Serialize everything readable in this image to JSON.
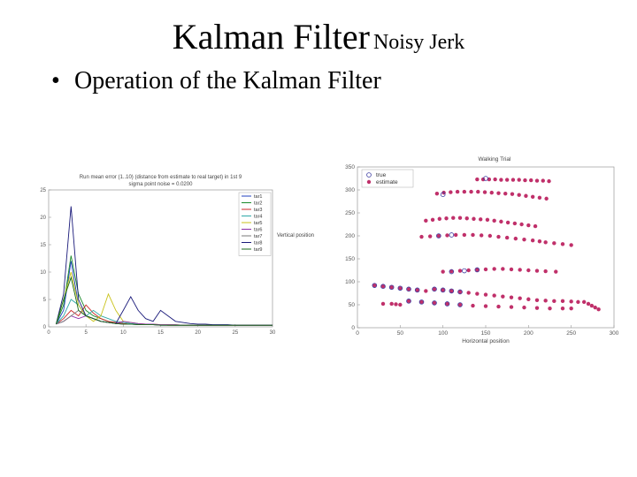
{
  "slide": {
    "title_main": "Kalman Filter",
    "title_sub": "Noisy Jerk",
    "bullet": "Operation of the Kalman Filter"
  },
  "chart_data": [
    {
      "type": "line",
      "title_line1": "Run mean error (1..10) (distance from estimate to real target) in 1st 9",
      "title_line2": "sigma point noise = 0.0200",
      "ylabel": "Vertical position",
      "xlim": [
        0,
        30
      ],
      "ylim": [
        0,
        25
      ],
      "xticks": [
        0,
        5,
        10,
        15,
        20,
        25,
        30
      ],
      "yticks": [
        0,
        5,
        10,
        15,
        20,
        25
      ],
      "legend_position": "top-right",
      "colors": [
        "#1f3fbf",
        "#1a8a2a",
        "#cc2a2a",
        "#2fa8a8",
        "#c9c21a",
        "#8a2aa8",
        "#7a7a7a",
        "#1a1a7a",
        "#1a6a1a"
      ],
      "series": [
        {
          "name": "tar1",
          "values": [
            0.5,
            3,
            12,
            4,
            2,
            1.5,
            1,
            0.8,
            0.6,
            0.5,
            0.5,
            0.4,
            0.4,
            0.4,
            0.3,
            0.3,
            0.3,
            0.3,
            0.3,
            0.3,
            0.3,
            0.3,
            0.3,
            0.3,
            0.3,
            0.3,
            0.3,
            0.3,
            0.3,
            0.3
          ]
        },
        {
          "name": "tar2",
          "values": [
            0.5,
            4,
            13,
            6,
            3,
            2,
            1.5,
            1,
            0.8,
            0.6,
            0.5,
            0.5,
            0.4,
            0.4,
            0.4,
            0.3,
            0.3,
            0.3,
            0.3,
            0.3,
            0.3,
            0.3,
            0.3,
            0.3,
            0.3,
            0.3,
            0.3,
            0.3,
            0.3,
            0.3
          ]
        },
        {
          "name": "tar3",
          "values": [
            0.5,
            1.5,
            3,
            2,
            4,
            2.5,
            1.5,
            1,
            0.8,
            0.6,
            0.5,
            0.5,
            0.4,
            0.4,
            0.4,
            0.3,
            0.3,
            0.3,
            0.3,
            0.3,
            0.3,
            0.3,
            0.3,
            0.3,
            0.3,
            0.3,
            0.3,
            0.3,
            0.3,
            0.3
          ]
        },
        {
          "name": "tar4",
          "values": [
            0.5,
            2,
            5,
            4,
            2,
            3,
            2,
            1.5,
            1,
            0.8,
            0.6,
            0.5,
            0.5,
            0.4,
            0.4,
            0.4,
            0.3,
            0.3,
            0.3,
            0.3,
            0.3,
            0.3,
            0.3,
            0.3,
            0.3,
            0.3,
            0.3,
            0.3,
            0.3,
            0.3
          ]
        },
        {
          "name": "tar5",
          "values": [
            0.5,
            5,
            10,
            4,
            2,
            1,
            2,
            6,
            3,
            1,
            0.8,
            0.6,
            0.5,
            0.5,
            0.4,
            0.4,
            0.4,
            0.3,
            0.3,
            0.3,
            0.3,
            0.3,
            0.3,
            0.3,
            0.3,
            0.3,
            0.3,
            0.3,
            0.3,
            0.3
          ]
        },
        {
          "name": "tar6",
          "values": [
            0.5,
            1,
            2,
            1.5,
            2,
            1.5,
            1,
            0.8,
            0.6,
            1,
            0.8,
            0.6,
            0.5,
            0.5,
            0.4,
            0.4,
            0.4,
            0.3,
            0.3,
            0.3,
            0.3,
            0.3,
            0.3,
            0.3,
            0.3,
            0.3,
            0.3,
            0.3,
            0.3,
            0.3
          ]
        },
        {
          "name": "tar7",
          "values": [
            0.5,
            1,
            2,
            3,
            2,
            1.5,
            1,
            0.8,
            0.6,
            0.5,
            0.5,
            0.4,
            0.4,
            0.4,
            0.3,
            0.3,
            0.3,
            0.3,
            0.3,
            0.3,
            0.3,
            0.3,
            0.3,
            0.3,
            0.3,
            0.3,
            0.3,
            0.3,
            0.3,
            0.3
          ]
        },
        {
          "name": "tar8",
          "values": [
            0.5,
            6,
            22,
            5,
            2,
            1.5,
            1,
            0.8,
            0.6,
            3,
            5.5,
            3,
            1.5,
            1,
            3,
            2,
            1,
            0.8,
            0.6,
            0.5,
            0.5,
            0.4,
            0.4,
            0.4,
            0.3,
            0.3,
            0.3,
            0.3,
            0.3,
            0.3
          ]
        },
        {
          "name": "tar9",
          "values": [
            0.5,
            5,
            9,
            3,
            2,
            1.5,
            1,
            0.8,
            0.6,
            0.5,
            0.5,
            0.4,
            0.4,
            0.4,
            0.3,
            0.3,
            0.3,
            0.3,
            0.3,
            0.3,
            0.3,
            0.3,
            0.3,
            0.3,
            0.3,
            0.3,
            0.3,
            0.3,
            0.3,
            0.3
          ]
        }
      ]
    },
    {
      "type": "scatter",
      "title": "Walking Trial",
      "xlabel": "Horizontal position",
      "ylabel": "",
      "xlim": [
        0,
        300
      ],
      "ylim": [
        0,
        350
      ],
      "xticks": [
        0,
        50,
        100,
        150,
        200,
        250,
        300
      ],
      "yticks": [
        0,
        50,
        100,
        150,
        200,
        250,
        300,
        350
      ],
      "legend_position": "top-left",
      "colors": {
        "true": "#3a3aa0",
        "estimate": "#c0306a"
      },
      "series": [
        {
          "name": "true",
          "marker": "open-circle",
          "points": [
            [
              20,
              92
            ],
            [
              30,
              90
            ],
            [
              40,
              88
            ],
            [
              50,
              86
            ],
            [
              60,
              84
            ],
            [
              70,
              82
            ],
            [
              90,
              84
            ],
            [
              100,
              82
            ],
            [
              110,
              80
            ],
            [
              120,
              78
            ],
            [
              60,
              58
            ],
            [
              75,
              56
            ],
            [
              90,
              54
            ],
            [
              105,
              52
            ],
            [
              120,
              50
            ],
            [
              110,
              122
            ],
            [
              125,
              124
            ],
            [
              140,
              126
            ],
            [
              95,
              200
            ],
            [
              110,
              202
            ],
            [
              100,
              290
            ],
            [
              150,
              325
            ]
          ]
        },
        {
          "name": "estimate",
          "marker": "filled-dot",
          "points": [
            [
              140,
              323
            ],
            [
              147,
              323
            ],
            [
              154,
              323
            ],
            [
              161,
              323
            ],
            [
              168,
              322
            ],
            [
              175,
              322
            ],
            [
              182,
              322
            ],
            [
              189,
              322
            ],
            [
              196,
              321
            ],
            [
              203,
              321
            ],
            [
              210,
              320
            ],
            [
              217,
              320
            ],
            [
              224,
              319
            ],
            [
              93,
              292
            ],
            [
              101,
              294
            ],
            [
              109,
              295
            ],
            [
              117,
              296
            ],
            [
              125,
              296
            ],
            [
              133,
              296
            ],
            [
              141,
              296
            ],
            [
              149,
              295
            ],
            [
              157,
              294
            ],
            [
              165,
              293
            ],
            [
              173,
              292
            ],
            [
              181,
              291
            ],
            [
              189,
              289
            ],
            [
              197,
              287
            ],
            [
              205,
              285
            ],
            [
              213,
              283
            ],
            [
              221,
              281
            ],
            [
              80,
              233
            ],
            [
              88,
              235
            ],
            [
              96,
              237
            ],
            [
              104,
              238
            ],
            [
              112,
              239
            ],
            [
              120,
              239
            ],
            [
              128,
              238
            ],
            [
              136,
              237
            ],
            [
              144,
              236
            ],
            [
              152,
              235
            ],
            [
              160,
              233
            ],
            [
              168,
              231
            ],
            [
              176,
              229
            ],
            [
              184,
              227
            ],
            [
              192,
              225
            ],
            [
              200,
              223
            ],
            [
              208,
              221
            ],
            [
              75,
              198
            ],
            [
              85,
              199
            ],
            [
              95,
              200
            ],
            [
              105,
              201
            ],
            [
              115,
              202
            ],
            [
              125,
              202
            ],
            [
              135,
              202
            ],
            [
              145,
              201
            ],
            [
              155,
              200
            ],
            [
              165,
              198
            ],
            [
              175,
              196
            ],
            [
              185,
              194
            ],
            [
              195,
              192
            ],
            [
              205,
              190
            ],
            [
              213,
              188
            ],
            [
              220,
              186
            ],
            [
              230,
              184
            ],
            [
              240,
              182
            ],
            [
              250,
              180
            ],
            [
              100,
              122
            ],
            [
              110,
              123
            ],
            [
              120,
              124
            ],
            [
              130,
              125
            ],
            [
              140,
              126
            ],
            [
              150,
              127
            ],
            [
              160,
              128
            ],
            [
              170,
              128
            ],
            [
              180,
              127
            ],
            [
              190,
              126
            ],
            [
              200,
              125
            ],
            [
              210,
              124
            ],
            [
              220,
              123
            ],
            [
              232,
              122
            ],
            [
              20,
              92
            ],
            [
              30,
              90
            ],
            [
              40,
              88
            ],
            [
              50,
              86
            ],
            [
              60,
              84
            ],
            [
              70,
              82
            ],
            [
              80,
              80
            ],
            [
              90,
              84
            ],
            [
              100,
              82
            ],
            [
              110,
              80
            ],
            [
              120,
              78
            ],
            [
              130,
              76
            ],
            [
              140,
              74
            ],
            [
              150,
              72
            ],
            [
              160,
              70
            ],
            [
              170,
              68
            ],
            [
              180,
              66
            ],
            [
              190,
              64
            ],
            [
              200,
              62
            ],
            [
              210,
              60
            ],
            [
              220,
              59
            ],
            [
              230,
              58
            ],
            [
              240,
              58
            ],
            [
              250,
              57
            ],
            [
              258,
              56
            ],
            [
              60,
              58
            ],
            [
              75,
              56
            ],
            [
              90,
              54
            ],
            [
              105,
              52
            ],
            [
              120,
              50
            ],
            [
              135,
              48
            ],
            [
              150,
              47
            ],
            [
              165,
              46
            ],
            [
              180,
              45
            ],
            [
              195,
              44
            ],
            [
              210,
              43
            ],
            [
              225,
              42
            ],
            [
              240,
              42
            ],
            [
              250,
              42
            ],
            [
              265,
              56
            ],
            [
              270,
              52
            ],
            [
              274,
              48
            ],
            [
              278,
              44
            ],
            [
              282,
              40
            ],
            [
              30,
              52
            ],
            [
              40,
              52
            ],
            [
              45,
              51
            ],
            [
              50,
              50
            ]
          ]
        }
      ]
    }
  ]
}
